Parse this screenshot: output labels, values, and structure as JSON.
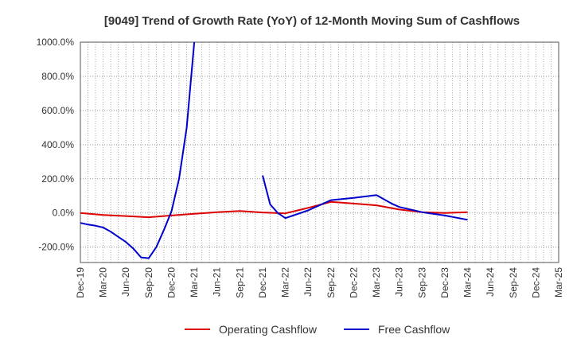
{
  "chart_data": {
    "type": "line",
    "title": "[9049]  Trend of Growth Rate (YoY) of 12-Month Moving Sum of Cashflows",
    "xlabel": "",
    "ylabel": "",
    "ylim": [
      -290,
      1000
    ],
    "y_ticks": [
      -200,
      0,
      200,
      400,
      600,
      800,
      1000
    ],
    "y_tick_labels": [
      "-200.0%",
      "0.0%",
      "200.0%",
      "400.0%",
      "600.0%",
      "800.0%",
      "1000.0%"
    ],
    "x_range": [
      "2019-12",
      "2025-03"
    ],
    "x_ticks": [
      "2019-12",
      "2020-03",
      "2020-06",
      "2020-09",
      "2020-12",
      "2021-03",
      "2021-06",
      "2021-09",
      "2021-12",
      "2022-03",
      "2022-06",
      "2022-09",
      "2022-12",
      "2023-03",
      "2023-06",
      "2023-09",
      "2023-12",
      "2024-03",
      "2024-06",
      "2024-09",
      "2024-12",
      "2025-03"
    ],
    "x_tick_labels": [
      "Dec-19",
      "Mar-20",
      "Jun-20",
      "Sep-20",
      "Dec-20",
      "Mar-21",
      "Jun-21",
      "Sep-21",
      "Dec-21",
      "Mar-22",
      "Jun-22",
      "Sep-22",
      "Dec-22",
      "Mar-23",
      "Jun-23",
      "Sep-23",
      "Dec-23",
      "Mar-24",
      "Jun-24",
      "Sep-24",
      "Dec-24",
      "Mar-25"
    ],
    "grid": true,
    "legend_position": "bottom-center",
    "series": [
      {
        "name": "Operating Cashflow",
        "color": "#dd0000",
        "points": [
          [
            "2019-12",
            0
          ],
          [
            "2020-03",
            -12
          ],
          [
            "2020-06",
            -18
          ],
          [
            "2020-09",
            -25
          ],
          [
            "2020-12",
            -15
          ],
          [
            "2021-03",
            -5
          ],
          [
            "2021-06",
            5
          ],
          [
            "2021-09",
            12
          ],
          [
            "2021-12",
            3
          ],
          [
            "2022-03",
            -2
          ],
          [
            "2022-06",
            30
          ],
          [
            "2022-09",
            65
          ],
          [
            "2022-12",
            55
          ],
          [
            "2023-03",
            45
          ],
          [
            "2023-06",
            20
          ],
          [
            "2023-09",
            5
          ],
          [
            "2023-12",
            0
          ],
          [
            "2024-03",
            5
          ]
        ]
      },
      {
        "name": "Free Cashflow",
        "color": "#0000cc",
        "segments": [
          [
            [
              "2019-12",
              -58
            ],
            [
              "2020-01",
              -68
            ],
            [
              "2020-02",
              -75
            ],
            [
              "2020-03",
              -85
            ],
            [
              "2020-04",
              -110
            ],
            [
              "2020-05",
              -140
            ],
            [
              "2020-06",
              -170
            ],
            [
              "2020-07",
              -210
            ],
            [
              "2020-08",
              -260
            ],
            [
              "2020-09",
              -265
            ],
            [
              "2020-10",
              -200
            ],
            [
              "2020-11",
              -100
            ],
            [
              "2020-12",
              10
            ],
            [
              "2021-01",
              200
            ],
            [
              "2021-02",
              500
            ],
            [
              "2021-03",
              1000
            ]
          ],
          [
            [
              "2021-12",
              220
            ],
            [
              "2022-01",
              50
            ],
            [
              "2022-02",
              0
            ],
            [
              "2022-03",
              -30
            ],
            [
              "2022-06",
              15
            ],
            [
              "2022-09",
              75
            ],
            [
              "2022-12",
              88
            ],
            [
              "2023-03",
              105
            ],
            [
              "2023-05",
              55
            ],
            [
              "2023-06",
              35
            ],
            [
              "2023-09",
              5
            ],
            [
              "2023-12",
              -15
            ],
            [
              "2024-03",
              -40
            ]
          ]
        ]
      }
    ]
  }
}
